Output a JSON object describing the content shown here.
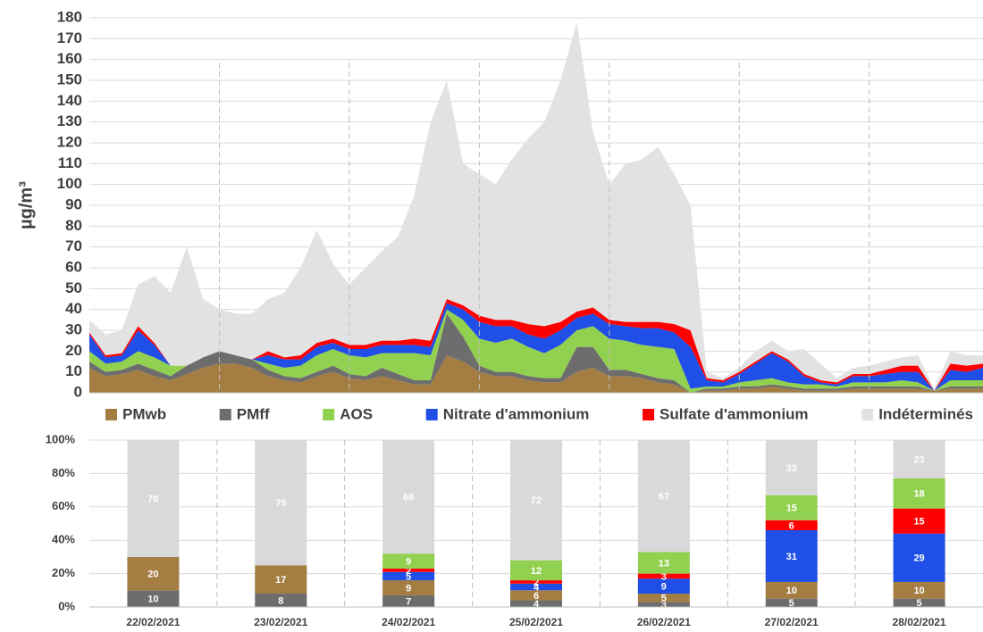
{
  "chart_data": [
    {
      "type": "stacked_area",
      "y_label": "µg/m³",
      "ylim": [
        0,
        180
      ],
      "yticks": [
        0,
        10,
        20,
        30,
        40,
        50,
        60,
        70,
        80,
        90,
        100,
        110,
        120,
        130,
        140,
        150,
        160,
        170,
        180
      ],
      "grid": true,
      "legend": "bottom",
      "series": [
        {
          "name": "PMwb",
          "color": "#a47d43",
          "values": [
            12,
            8,
            9,
            11,
            8,
            6,
            9,
            12,
            14,
            14,
            12,
            8,
            6,
            5,
            8,
            10,
            7,
            6,
            8,
            6,
            4,
            4,
            18,
            15,
            10,
            8,
            8,
            6,
            5,
            5,
            10,
            12,
            8,
            8,
            7,
            5,
            4,
            0,
            1,
            1,
            2,
            2,
            3,
            2,
            1,
            1,
            1,
            2,
            2,
            2,
            2,
            2,
            1,
            2,
            2,
            2
          ]
        },
        {
          "name": "PMff",
          "color": "#6d6d6d",
          "values": [
            3,
            2,
            2,
            3,
            3,
            2,
            4,
            5,
            6,
            4,
            4,
            3,
            2,
            2,
            2,
            3,
            2,
            2,
            4,
            3,
            2,
            2,
            20,
            12,
            3,
            2,
            2,
            2,
            2,
            2,
            12,
            10,
            3,
            3,
            2,
            2,
            2,
            0,
            1,
            1,
            1,
            1,
            1,
            1,
            1,
            1,
            1,
            1,
            1,
            1,
            1,
            1,
            0,
            1,
            1,
            1
          ]
        },
        {
          "name": "AOS",
          "color": "#92d050",
          "values": [
            5,
            4,
            4,
            6,
            6,
            5,
            0,
            0,
            0,
            0,
            0,
            3,
            4,
            6,
            8,
            8,
            9,
            9,
            7,
            10,
            13,
            12,
            2,
            8,
            13,
            14,
            16,
            14,
            12,
            16,
            8,
            10,
            15,
            14,
            14,
            15,
            15,
            2,
            1,
            1,
            2,
            3,
            3,
            2,
            2,
            2,
            1,
            2,
            2,
            2,
            3,
            2,
            0,
            3,
            3,
            3
          ]
        },
        {
          "name": "Nitrate d'ammonium",
          "color": "#1f4fe6",
          "values": [
            8,
            3,
            3,
            10,
            6,
            0,
            0,
            0,
            0,
            0,
            0,
            4,
            4,
            3,
            4,
            3,
            3,
            4,
            4,
            4,
            4,
            4,
            3,
            5,
            8,
            8,
            6,
            6,
            7,
            7,
            6,
            6,
            7,
            7,
            8,
            9,
            8,
            20,
            3,
            2,
            4,
            8,
            12,
            10,
            4,
            1,
            1,
            3,
            3,
            4,
            4,
            5,
            0,
            5,
            4,
            6
          ]
        },
        {
          "name": "Sulfate d'ammonium",
          "color": "#ff0000",
          "values": [
            1,
            1,
            1,
            2,
            1,
            0,
            0,
            0,
            0,
            0,
            0,
            2,
            1,
            2,
            2,
            2,
            2,
            2,
            2,
            2,
            3,
            3,
            2,
            2,
            3,
            3,
            3,
            5,
            6,
            4,
            3,
            3,
            2,
            2,
            3,
            3,
            4,
            8,
            1,
            1,
            1,
            1,
            1,
            1,
            1,
            1,
            1,
            1,
            1,
            2,
            3,
            3,
            0,
            3,
            3,
            2
          ]
        },
        {
          "name": "Indéterminés",
          "color": "#e2e2e2",
          "values": [
            6,
            10,
            11,
            20,
            32,
            35,
            57,
            28,
            20,
            20,
            22,
            25,
            31,
            42,
            54,
            36,
            29,
            37,
            43,
            50,
            69,
            105,
            105,
            68,
            68,
            65,
            77,
            89,
            98,
            116,
            139,
            84,
            65,
            76,
            78,
            84,
            72,
            60,
            3,
            1,
            2,
            5,
            5,
            4,
            12,
            8,
            2,
            3,
            4,
            4,
            4,
            5,
            1,
            6,
            5,
            4
          ]
        }
      ]
    },
    {
      "type": "stacked_bar_100",
      "categories": [
        "22/02/2021",
        "23/02/2021",
        "24/02/2021",
        "25/02/2021",
        "26/02/2021",
        "27/02/2021",
        "28/02/2021"
      ],
      "ylim": [
        0,
        100
      ],
      "yticks": [
        {
          "value": 0,
          "label": "0%"
        },
        {
          "value": 20,
          "label": "20%"
        },
        {
          "value": 40,
          "label": "40%"
        },
        {
          "value": 60,
          "label": "60%"
        },
        {
          "value": 80,
          "label": "80%"
        },
        {
          "value": 100,
          "label": "100%"
        }
      ],
      "grid": true,
      "series": [
        {
          "name": "PMff",
          "color": "#6d6d6d",
          "values": [
            10,
            8,
            7,
            4,
            3,
            5,
            5
          ]
        },
        {
          "name": "PMwb",
          "color": "#a47d43",
          "values": [
            20,
            17,
            9,
            6,
            5,
            10,
            10
          ]
        },
        {
          "name": "Nitrate d'ammonium",
          "color": "#1f4fe6",
          "values": [
            0,
            0,
            5,
            4,
            9,
            31,
            29
          ]
        },
        {
          "name": "Sulfate d'ammonium",
          "color": "#ff0000",
          "values": [
            0,
            0,
            2,
            2,
            3,
            6,
            15
          ]
        },
        {
          "name": "AOS",
          "color": "#92d050",
          "values": [
            0,
            0,
            9,
            12,
            13,
            15,
            18
          ]
        },
        {
          "name": "Indéterminés",
          "color": "#d9d9d9",
          "values": [
            70,
            75,
            68,
            72,
            67,
            33,
            23
          ]
        }
      ]
    }
  ]
}
